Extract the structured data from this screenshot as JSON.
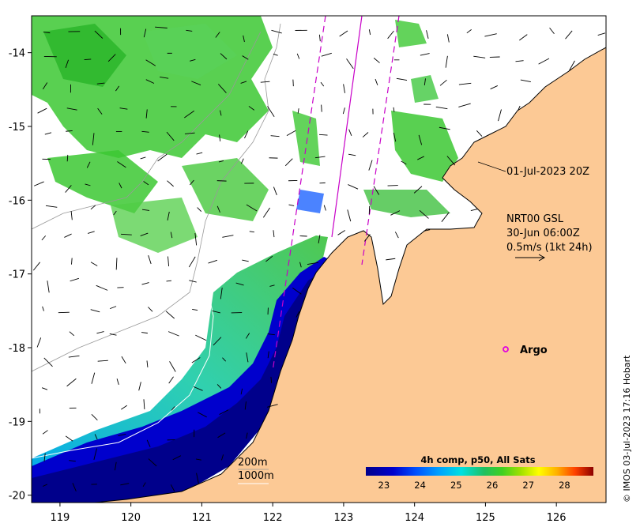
{
  "map": {
    "x_ticks": [
      "119",
      "120",
      "121",
      "122",
      "123",
      "124",
      "125",
      "126"
    ],
    "y_ticks": [
      "-14",
      "-15",
      "-16",
      "-17",
      "-18",
      "-19",
      "-20"
    ],
    "extent": {
      "lon": [
        118.6,
        126.7
      ],
      "lat": [
        -20.1,
        -13.5
      ]
    }
  },
  "annotations": {
    "track_time": "01-Jul-2023 20Z",
    "current_product": "NRT00 GSL",
    "current_time": "30-Jun 06:00Z",
    "current_scale": "0.5m/s (1kt 24h)",
    "argo_label": "Argo",
    "contour_200": "200m",
    "contour_1000": "1000m"
  },
  "colorbar": {
    "title": "4h comp, p50, All Sats",
    "labels": [
      "23",
      "24",
      "25",
      "26",
      "27",
      "28"
    ],
    "range": [
      22.5,
      28.8
    ]
  },
  "credit": "© IMOS 03-Jul-2023 17:16 Hobart",
  "colors": {
    "land": "#fcc995",
    "argo": "#e000e0",
    "track": "#c800c8",
    "sst_cold": "#00008b",
    "sst_warm": "#8b0000"
  }
}
